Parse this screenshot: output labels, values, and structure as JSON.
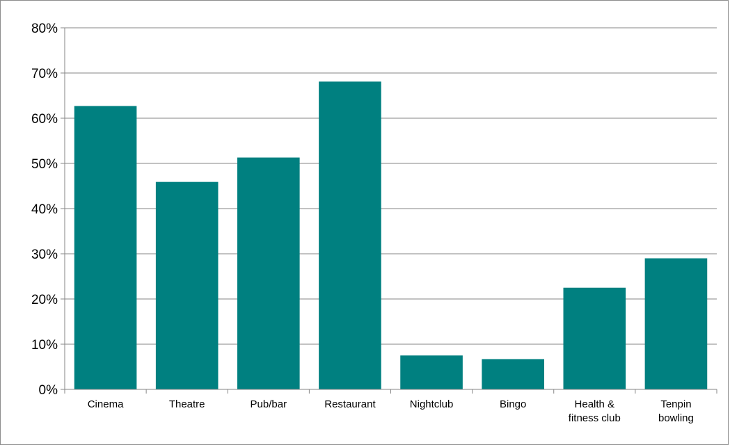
{
  "chart_data": {
    "type": "bar",
    "categories": [
      [
        "Cinema"
      ],
      [
        "Theatre"
      ],
      [
        "Pub/bar"
      ],
      [
        "Restaurant"
      ],
      [
        "Nightclub"
      ],
      [
        "Bingo"
      ],
      [
        "Health &",
        "fitness club"
      ],
      [
        "Tenpin",
        "bowling"
      ]
    ],
    "values": [
      62.7,
      45.9,
      51.3,
      68.1,
      7.5,
      6.7,
      22.5,
      29.0
    ],
    "title": "",
    "xlabel": "",
    "ylabel": "",
    "ylim": [
      0,
      80
    ],
    "yticks": [
      "0%",
      "10%",
      "20%",
      "30%",
      "40%",
      "50%",
      "60%",
      "70%",
      "80%"
    ],
    "grid": true,
    "legend": "none",
    "bar_color": "#008080",
    "gridline_color": "#868686"
  }
}
